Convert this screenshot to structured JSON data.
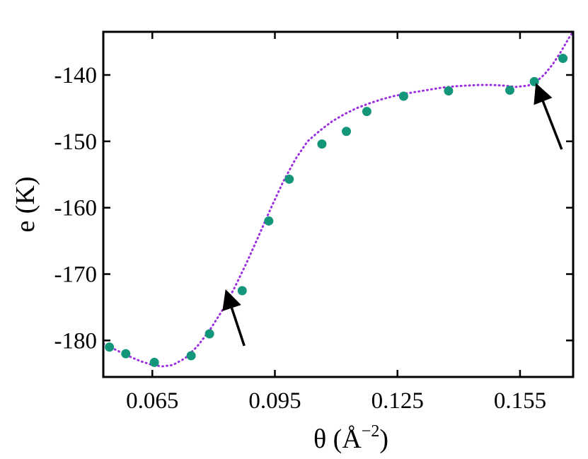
{
  "chart_data": {
    "type": "scatter",
    "xlabel": "θ (Å",
    "xlabel_sup": "−2",
    "xlabel_close": ")",
    "ylabel": "e (K)",
    "xlim": [
      0.053,
      0.168
    ],
    "ylim": [
      -185.5,
      -133.5
    ],
    "x_ticks": [
      0.065,
      0.095,
      0.125,
      0.155
    ],
    "x_tick_labels": [
      "0.065",
      "0.095",
      "0.125",
      "0.155"
    ],
    "y_ticks": [
      -180,
      -170,
      -160,
      -150,
      -140
    ],
    "y_tick_labels": [
      "-180",
      "-170",
      "-160",
      "-150",
      "-140"
    ],
    "grid": false,
    "series": [
      {
        "kind": "points",
        "color": "#14967a",
        "x": [
          0.0545,
          0.0585,
          0.0655,
          0.0745,
          0.079,
          0.087,
          0.0935,
          0.0985,
          0.1065,
          0.1125,
          0.1175,
          0.1265,
          0.1375,
          0.1525,
          0.1585,
          0.1655
        ],
        "y": [
          -181.0,
          -182.0,
          -183.3,
          -182.3,
          -179.0,
          -172.5,
          -162.0,
          -155.7,
          -150.4,
          -148.5,
          -145.5,
          -143.2,
          -142.4,
          -142.3,
          -141.0,
          -137.5
        ]
      },
      {
        "kind": "fit-curve",
        "style": "dotted",
        "color": "#9b30e0",
        "x": [
          0.053,
          0.056,
          0.059,
          0.062,
          0.065,
          0.0675,
          0.07,
          0.073,
          0.076,
          0.079,
          0.082,
          0.085,
          0.088,
          0.091,
          0.094,
          0.097,
          0.1,
          0.103,
          0.106,
          0.109,
          0.112,
          0.115,
          0.118,
          0.121,
          0.124,
          0.127,
          0.13,
          0.133,
          0.136,
          0.139,
          0.142,
          0.145,
          0.148,
          0.151,
          0.154,
          0.157,
          0.159,
          0.161,
          0.163,
          0.165,
          0.167,
          0.168
        ],
        "y": [
          -180.5,
          -181.4,
          -182.3,
          -183.1,
          -183.7,
          -183.9,
          -183.7,
          -182.7,
          -180.9,
          -178.5,
          -175.6,
          -172.2,
          -168.4,
          -164.3,
          -160.1,
          -156.1,
          -152.7,
          -150.0,
          -148.4,
          -147.0,
          -145.9,
          -145.0,
          -144.3,
          -143.7,
          -143.2,
          -142.8,
          -142.5,
          -142.2,
          -141.9,
          -141.7,
          -141.6,
          -141.5,
          -141.5,
          -141.6,
          -141.8,
          -141.6,
          -141.0,
          -139.9,
          -138.4,
          -136.5,
          -134.4,
          -133.5
        ]
      }
    ],
    "annotations": [
      {
        "kind": "arrow",
        "from": [
          0.0875,
          -180.8
        ],
        "to": [
          0.0833,
          -173.0
        ]
      },
      {
        "kind": "arrow",
        "from": [
          0.1652,
          -151.2
        ],
        "to": [
          0.1593,
          -141.9
        ]
      }
    ]
  }
}
